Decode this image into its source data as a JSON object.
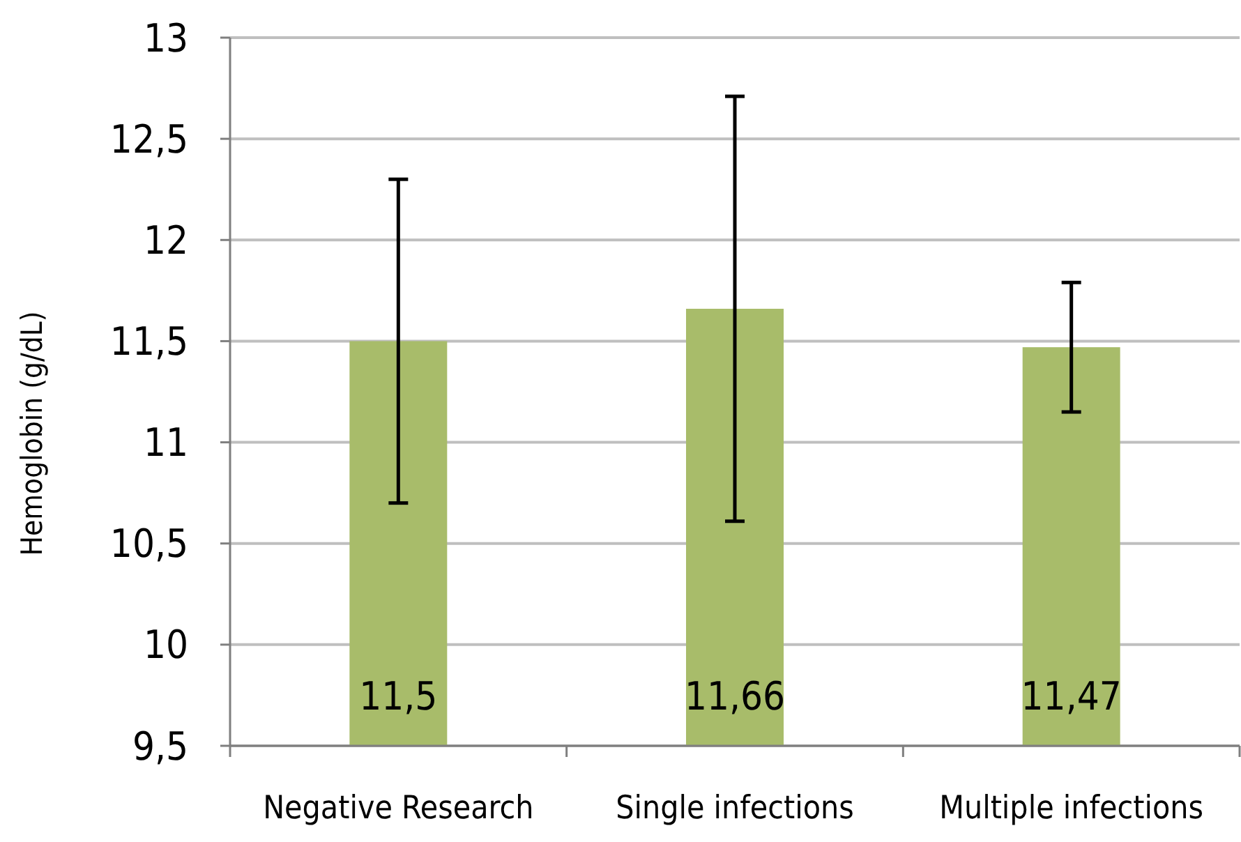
{
  "chart_data": {
    "type": "bar",
    "ylabel": "Hemoglobin (g/dL)",
    "categories": [
      "Negative Research",
      "Single infections",
      "Multiple infections"
    ],
    "values": [
      11.5,
      11.66,
      11.47
    ],
    "value_labels": [
      "11,5",
      "11,66",
      "11,47"
    ],
    "errors": [
      [
        10.7,
        12.3
      ],
      [
        10.61,
        12.71
      ],
      [
        11.15,
        11.79
      ]
    ],
    "color": "#a8bc6a",
    "ylim": [
      9.5,
      13
    ],
    "yticks": [
      {
        "value": 9.5,
        "label": "9,5"
      },
      10,
      {
        "value": 10.5,
        "label": "10,5"
      },
      11,
      {
        "value": 11.5,
        "label": "11,5"
      },
      12,
      {
        "value": 12.5,
        "label": "12,5"
      },
      13
    ],
    "grid": "y"
  }
}
